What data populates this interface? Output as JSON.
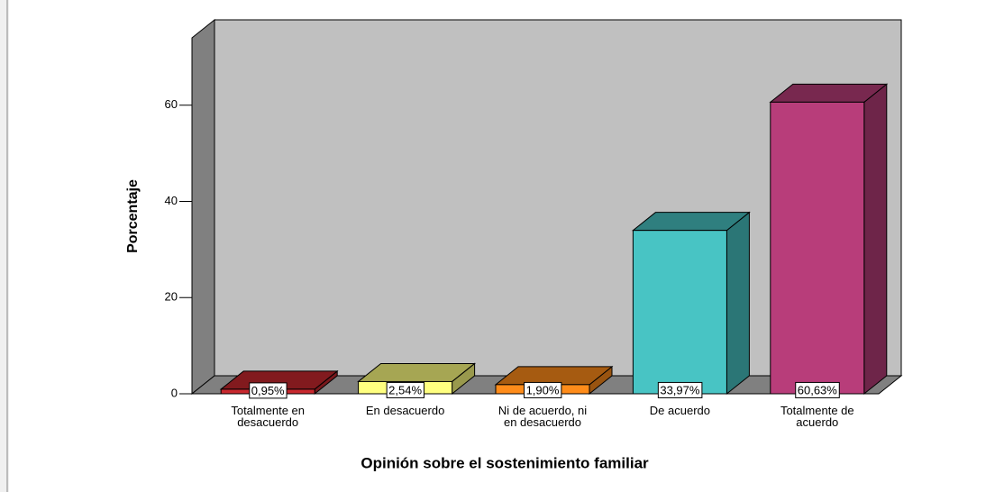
{
  "chart_data": {
    "type": "bar3d",
    "x_label": "Opinión sobre el sostenimiento familiar",
    "y_label": "Porcentaje",
    "categories": [
      "Totalmente en desacuerdo",
      "En desacuerdo",
      "Ni de acuerdo, ni en desacuerdo",
      "De acuerdo",
      "Totalmente de acuerdo"
    ],
    "values": [
      0.95,
      2.54,
      1.9,
      33.97,
      60.63
    ],
    "value_labels": [
      "0,95%",
      "2,54%",
      "1,90%",
      "33,97%",
      "60,63%"
    ],
    "colors": [
      "#c8282e",
      "#ffff80",
      "#ff8c1a",
      "#48c4c4",
      "#b83d7a"
    ],
    "ylim": [
      0,
      74
    ],
    "yticks": [
      0,
      20,
      40,
      60
    ]
  }
}
